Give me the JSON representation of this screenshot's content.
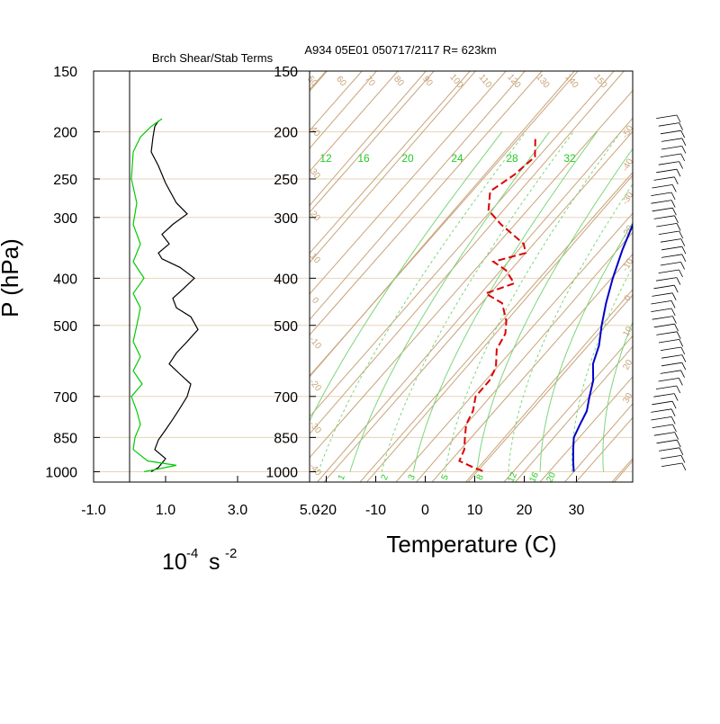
{
  "title_left": "Brch Shear/Stab Terms",
  "title_right": "A934 05E01 050717/2117 R= 623km",
  "y_axis_label": "P (hPa)",
  "left_xlabel_base": "10",
  "left_xlabel_exp": "-4",
  "left_xlabel_unit": "s",
  "left_xlabel_unit_exp": "-2",
  "right_xlabel": "Temperature (C)",
  "colors": {
    "frame": "#000000",
    "isobar": "#e8d3b8",
    "skew_grid": "#c8a47a",
    "mixing_ratio": "#7cd67c",
    "mixing_label": "#22cc22",
    "temperature": "#0000cc",
    "dewpoint": "#dd0000",
    "shear": "#000000",
    "stability": "#00cc00"
  },
  "chart_data": [
    {
      "type": "line",
      "name": "branch-shear-stability",
      "ylabel": "P (hPa)",
      "y_scale": "log",
      "y_ticks": [
        150,
        200,
        250,
        300,
        400,
        500,
        700,
        850,
        1000
      ],
      "ylim": [
        1050,
        150
      ],
      "xlim": [
        -1.0,
        5.0
      ],
      "x_ticks": [
        -1.0,
        1.0,
        3.0,
        5.0
      ],
      "x_tick_labels": [
        "-1.0",
        "1.0",
        "3.0",
        "5.0"
      ],
      "series": [
        {
          "style": "black",
          "points": [
            [
              0.8,
              190
            ],
            [
              0.7,
              195
            ],
            [
              0.65,
              205
            ],
            [
              0.6,
              220
            ],
            [
              0.8,
              235
            ],
            [
              1.0,
              255
            ],
            [
              1.3,
              280
            ],
            [
              1.6,
              295
            ],
            [
              1.2,
              310
            ],
            [
              0.9,
              325
            ],
            [
              1.1,
              340
            ],
            [
              0.8,
              355
            ],
            [
              0.9,
              365
            ],
            [
              1.4,
              380
            ],
            [
              1.8,
              400
            ],
            [
              1.5,
              420
            ],
            [
              1.2,
              440
            ],
            [
              1.3,
              460
            ],
            [
              1.7,
              480
            ],
            [
              1.9,
              510
            ],
            [
              1.6,
              540
            ],
            [
              1.3,
              570
            ],
            [
              1.1,
              600
            ],
            [
              1.4,
              630
            ],
            [
              1.7,
              660
            ],
            [
              1.6,
              700
            ],
            [
              1.4,
              740
            ],
            [
              1.2,
              780
            ],
            [
              1.0,
              820
            ],
            [
              0.8,
              860
            ],
            [
              0.7,
              900
            ],
            [
              1.0,
              940
            ],
            [
              0.8,
              980
            ],
            [
              0.6,
              1000
            ]
          ]
        },
        {
          "style": "green",
          "points": [
            [
              0.9,
              188
            ],
            [
              0.6,
              195
            ],
            [
              0.3,
              205
            ],
            [
              0.1,
              220
            ],
            [
              0.05,
              250
            ],
            [
              0.2,
              280
            ],
            [
              0.1,
              310
            ],
            [
              0.3,
              340
            ],
            [
              0.1,
              370
            ],
            [
              0.4,
              400
            ],
            [
              0.1,
              430
            ],
            [
              0.3,
              460
            ],
            [
              0.2,
              500
            ],
            [
              0.1,
              540
            ],
            [
              0.3,
              580
            ],
            [
              0.1,
              620
            ],
            [
              0.35,
              660
            ],
            [
              0.05,
              700
            ],
            [
              0.2,
              750
            ],
            [
              0.3,
              800
            ],
            [
              0.15,
              850
            ],
            [
              0.1,
              900
            ],
            [
              0.5,
              950
            ],
            [
              1.3,
              970
            ],
            [
              0.7,
              990
            ],
            [
              0.4,
              1000
            ]
          ]
        }
      ]
    },
    {
      "type": "line",
      "name": "skew-t-sounding",
      "xlabel": "Temperature (C)",
      "y_scale": "log",
      "y_ticks": [
        150,
        200,
        250,
        300,
        400,
        500,
        700,
        850,
        1000
      ],
      "ylim": [
        1050,
        150
      ],
      "x_ticks": [
        -20,
        -10,
        0,
        10,
        20,
        30
      ],
      "theta_labels": [
        50,
        60,
        70,
        80,
        90,
        100,
        110,
        120,
        130,
        140,
        150
      ],
      "thetae_labels": [
        40,
        30,
        20,
        10,
        0,
        -10,
        -20,
        -30,
        -40,
        -50,
        -60
      ],
      "mixing_ratio_g_kg": [
        1,
        2,
        3,
        5,
        8,
        12,
        16,
        20,
        24,
        28,
        32
      ],
      "series": [
        {
          "name": "temperature",
          "points": [
            [
              -12,
              180
            ],
            [
              -10,
              200
            ],
            [
              -7,
              230
            ],
            [
              -5,
              260
            ],
            [
              -2,
              300
            ],
            [
              1,
              350
            ],
            [
              4,
              400
            ],
            [
              7,
              450
            ],
            [
              10,
              500
            ],
            [
              13,
              550
            ],
            [
              15,
              600
            ],
            [
              18,
              650
            ],
            [
              20,
              700
            ],
            [
              22,
              750
            ],
            [
              23,
              800
            ],
            [
              24,
              850
            ],
            [
              26,
              900
            ],
            [
              28,
              950
            ],
            [
              30,
              1000
            ]
          ]
        },
        {
          "name": "dewpoint",
          "points": [
            [
              -36,
              207
            ],
            [
              -33,
              225
            ],
            [
              -34,
              245
            ],
            [
              -36,
              265
            ],
            [
              -33,
              290
            ],
            [
              -28,
              310
            ],
            [
              -20,
              340
            ],
            [
              -18,
              355
            ],
            [
              -23,
              370
            ],
            [
              -19,
              385
            ],
            [
              -15,
              410
            ],
            [
              -19,
              430
            ],
            [
              -14,
              450
            ],
            [
              -10,
              490
            ],
            [
              -8,
              520
            ],
            [
              -7,
              560
            ],
            [
              -4,
              610
            ],
            [
              -3,
              650
            ],
            [
              -3,
              700
            ],
            [
              -1,
              750
            ],
            [
              0,
              800
            ],
            [
              2,
              850
            ],
            [
              4,
              900
            ],
            [
              5,
              950
            ],
            [
              9,
              980
            ],
            [
              12,
              1000
            ]
          ]
        }
      ]
    }
  ]
}
